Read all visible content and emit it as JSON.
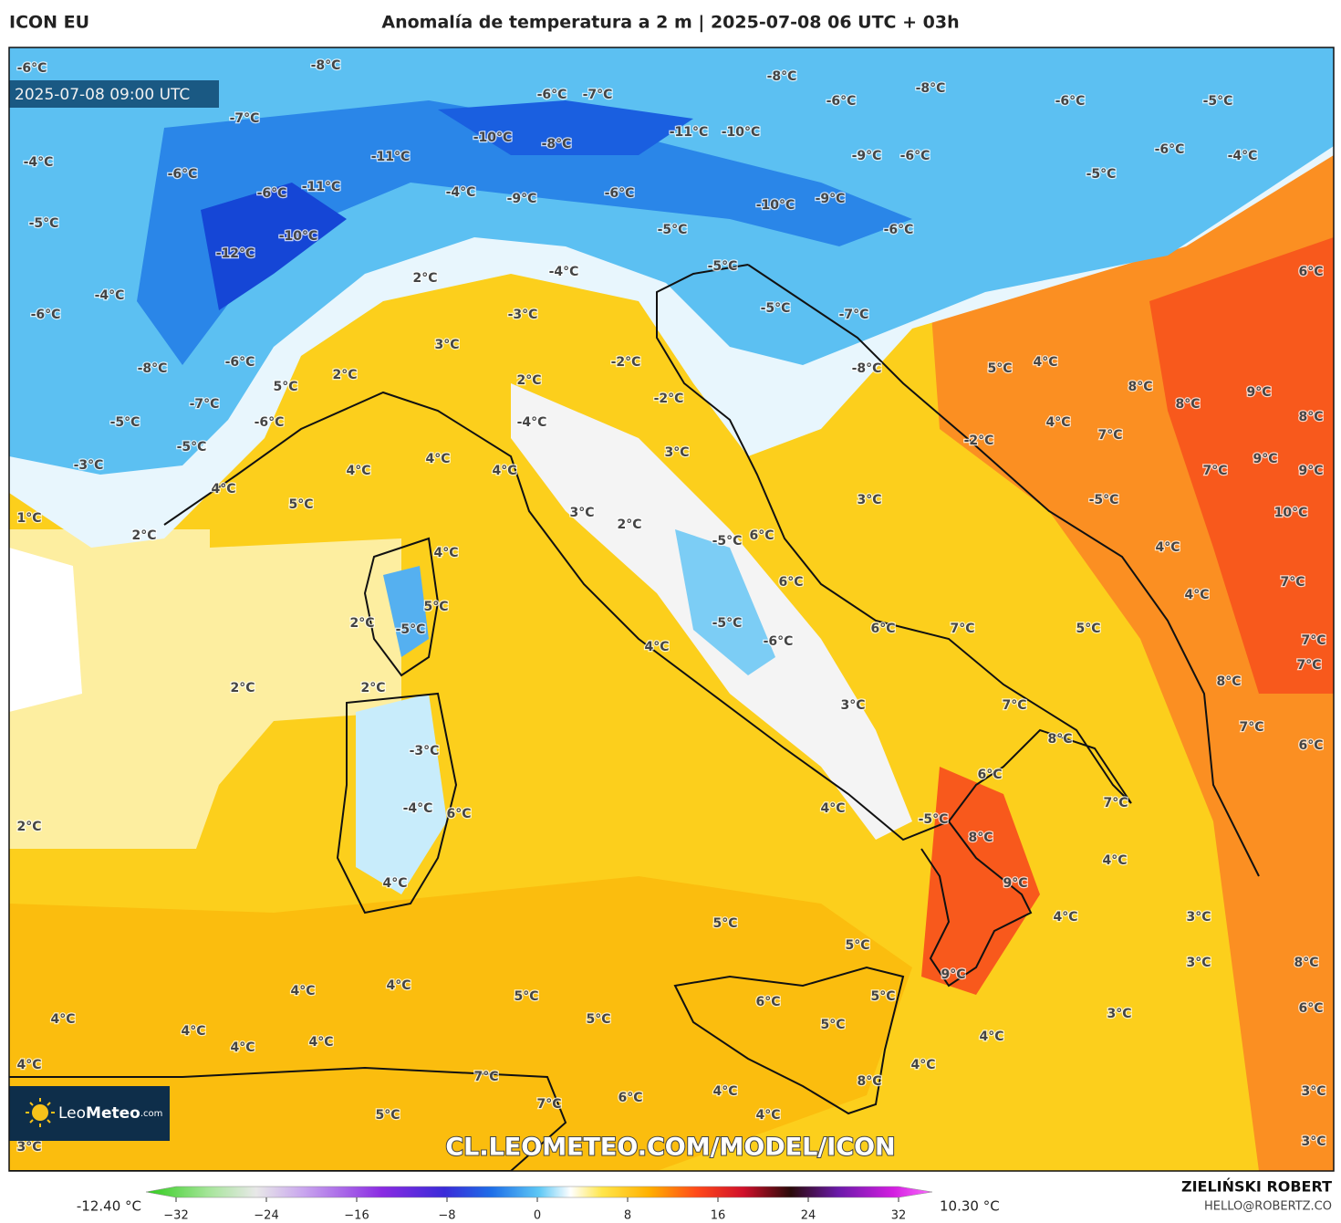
{
  "header": {
    "model": "ICON EU",
    "title": "Anomalía de temperatura a 2 m | 2025-07-08 06 UTC + 03h",
    "valid_time": "2025-07-08 09:00 UTC"
  },
  "logo": {
    "brand_light": "Leo",
    "brand_bold": "Meteo",
    "suffix": ".com"
  },
  "watermark": "CL.LEOMETEO.COM/MODEL/ICON",
  "author": {
    "name": "ZIELIŃSKI ROBERT",
    "contact": "HELLO@ROBERTZ.CO"
  },
  "colorbar": {
    "min_label": "-12.40 °C",
    "max_label": "10.30 °C",
    "lim": [
      -32,
      32
    ],
    "ticks": [
      {
        "value": -32,
        "label": "−32"
      },
      {
        "value": -24,
        "label": "−24"
      },
      {
        "value": -16,
        "label": "−16"
      },
      {
        "value": -8,
        "label": "−8"
      },
      0,
      8,
      16,
      24,
      32
    ]
  },
  "map_labels": [
    "-6°C",
    "-8°C",
    "-8°C",
    "-8°C",
    "-6°C",
    "-7°C",
    "-6°C",
    "-6°C",
    "-5°C",
    "-7°C",
    "-10°C",
    "-8°C",
    "-11°C",
    "-10°C",
    "-4°C",
    "-11°C",
    "-9°C",
    "-6°C",
    "-6°C",
    "-5°C",
    "-6°C",
    "-4°C",
    "-6°C",
    "-11°C",
    "-4°C",
    "-9°C",
    "-6°C",
    "-10°C",
    "-9°C",
    "-5°C",
    "-5°C",
    "-6°C",
    "-10°C",
    "-12°C",
    "-5°C",
    "-4°C",
    "2°C",
    "6°C",
    "-4°C",
    "-6°C",
    "-5°C",
    "-7°C",
    "-3°C",
    "3°C",
    "-8°C",
    "-6°C",
    "2°C",
    "5°C",
    "4°C",
    "2°C",
    "-2°C",
    "-8°C",
    "5°C",
    "8°C",
    "8°C",
    "9°C",
    "-2°C",
    "-7°C",
    "-5°C",
    "-6°C",
    "-4°C",
    "4°C",
    "7°C",
    "8°C",
    "-5°C",
    "-2°C",
    "3°C",
    "4°C",
    "-3°C",
    "4°C",
    "4°C",
    "7°C",
    "9°C",
    "9°C",
    "4°C",
    "3°C",
    "5°C",
    "-5°C",
    "10°C",
    "1°C",
    "3°C",
    "2°C",
    "2°C",
    "6°C",
    "-5°C",
    "4°C",
    "4°C",
    "6°C",
    "7°C",
    "4°C",
    "5°C",
    "2°C",
    "-5°C",
    "-5°C",
    "6°C",
    "7°C",
    "5°C",
    "7°C",
    "-6°C",
    "4°C",
    "7°C",
    "2°C",
    "2°C",
    "8°C",
    "3°C",
    "7°C",
    "7°C",
    "-3°C",
    "8°C",
    "6°C",
    "6°C",
    "4°C",
    "-4°C",
    "6°C",
    "7°C",
    "-5°C",
    "2°C",
    "8°C",
    "4°C",
    "9°C",
    "4°C",
    "4°C",
    "3°C",
    "5°C",
    "5°C",
    "8°C",
    "3°C",
    "9°C",
    "4°C",
    "4°C",
    "5°C",
    "6°C",
    "5°C",
    "4°C",
    "3°C",
    "6°C",
    "5°C",
    "5°C",
    "4°C",
    "4°C",
    "4°C",
    "4°C",
    "4°C",
    "4°C",
    "7°C",
    "8°C",
    "4°C",
    "3°C",
    "6°C",
    "7°C",
    "5°C",
    "4°C",
    "3°C",
    "3°C"
  ]
}
